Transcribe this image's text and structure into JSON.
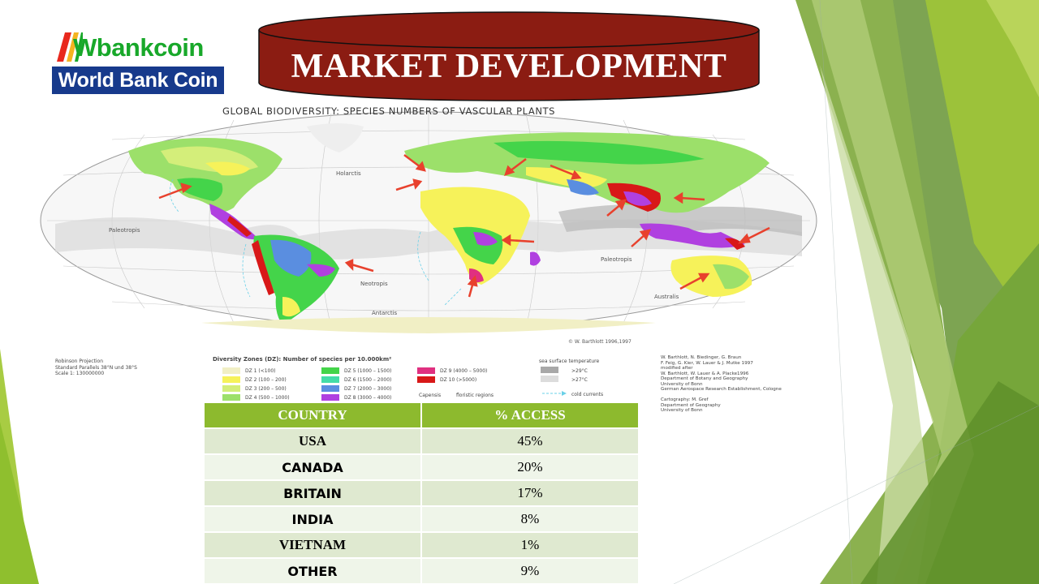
{
  "logo": {
    "brand": "Wbankcoin",
    "subtitle": "World Bank Coin"
  },
  "slide": {
    "title": "MARKET DEVELOPMENT"
  },
  "map": {
    "caption": "GLOBAL BIODIVERSITY:  SPECIES NUMBERS OF VASCULAR PLANTS",
    "labels": {
      "holarctis": "Holarctis",
      "paleotropis_w": "Paleotropis",
      "paleotropis_e": "Paleotropis",
      "neotropis": "Neotropis",
      "antarctis": "Antarctis",
      "australis": "Australis",
      "credit": "© W. Barthlott 1996,1997"
    },
    "projection": [
      "Robinson Projection",
      "Standard Parallels 38°N und 38°S",
      "Scale 1: 130000000"
    ],
    "legend_title": "Diversity Zones (DZ): Number of species per 10.000km²",
    "zones": [
      {
        "label": "DZ 1    (<100)",
        "color": "#f1efc5"
      },
      {
        "label": "DZ 2    (100 – 200)",
        "color": "#f6f25a"
      },
      {
        "label": "DZ 3    (200 – 500)",
        "color": "#d4ee7a"
      },
      {
        "label": "DZ 4    (500 – 1000)",
        "color": "#9ce06a"
      },
      {
        "label": "DZ 5    (1000 – 1500)",
        "color": "#44d44a"
      },
      {
        "label": "DZ 6    (1500 – 2000)",
        "color": "#44dca8"
      },
      {
        "label": "DZ 7    (2000 – 3000)",
        "color": "#5a8ee0"
      },
      {
        "label": "DZ 8    (3000 – 4000)",
        "color": "#b040e0"
      },
      {
        "label": "DZ 9    (4000 – 5000)",
        "color": "#e03080"
      },
      {
        "label": "DZ 10  (>5000)",
        "color": "#d81818"
      }
    ],
    "extra_legend": {
      "sea_temp": "sea surface temperature",
      "t29": ">29°C",
      "t27": ">27°C",
      "capensis": "Capensis",
      "floristic": "floristic regions",
      "cold": "cold currents"
    },
    "sources": [
      "W. Barthlott, N. Biedinger, G. Braun",
      "F. Feig, G. Kier, W. Lauer & J. Mutke 1997",
      "modified after",
      "W. Barthlott, W. Lauer & A. Placke1996",
      "Department of Botany and Geography",
      "University of Bonn",
      "German Aerospace Research Establishment, Cologne",
      "",
      "Cartography: M. Gref",
      "Department of Geography",
      "University of Bonn"
    ]
  },
  "table": {
    "headers": [
      "COUNTRY",
      "% ACCESS"
    ],
    "rows": [
      {
        "country": "USA",
        "access": "45%"
      },
      {
        "country": "CANADA",
        "access": "20%"
      },
      {
        "country": "BRITAIN",
        "access": "17%"
      },
      {
        "country": "INDIA",
        "access": "8%"
      },
      {
        "country": "VIETNAM",
        "access": "1%"
      },
      {
        "country": "OTHER",
        "access": "9%"
      }
    ]
  },
  "theme": {
    "accent": "#8dba2e",
    "title_fill": "#8b1c12",
    "logo_blue": "#173a8c",
    "logo_green": "#18a82a"
  }
}
